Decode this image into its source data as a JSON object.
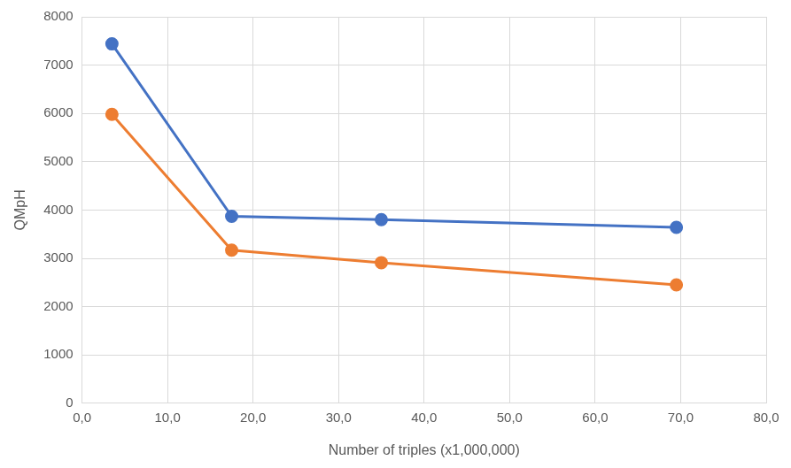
{
  "chart_data": {
    "type": "line",
    "x_label": "Number of triples (x1,000,000)",
    "y_label": "QMpH",
    "x": [
      3.5,
      17.5,
      35.0,
      69.5
    ],
    "series": [
      {
        "color": "#4472c4",
        "values": [
          7440,
          3870,
          3800,
          3640
        ]
      },
      {
        "color": "#ed7d31",
        "values": [
          5980,
          3170,
          2910,
          2450
        ]
      }
    ],
    "xlim": [
      0,
      80
    ],
    "xticks": [
      {
        "value": 0,
        "label": "0,0"
      },
      {
        "value": 10,
        "label": "10,0"
      },
      {
        "value": 20,
        "label": "20,0"
      },
      {
        "value": 30,
        "label": "30,0"
      },
      {
        "value": 40,
        "label": "40,0"
      },
      {
        "value": 50,
        "label": "50,0"
      },
      {
        "value": 60,
        "label": "60,0"
      },
      {
        "value": 70,
        "label": "70,0"
      },
      {
        "value": 80,
        "label": "80,0"
      }
    ],
    "ylim": [
      0,
      8000
    ],
    "yticks": [
      0,
      1000,
      2000,
      3000,
      4000,
      5000,
      6000,
      7000,
      8000
    ],
    "grid": true,
    "marker": "circle"
  }
}
